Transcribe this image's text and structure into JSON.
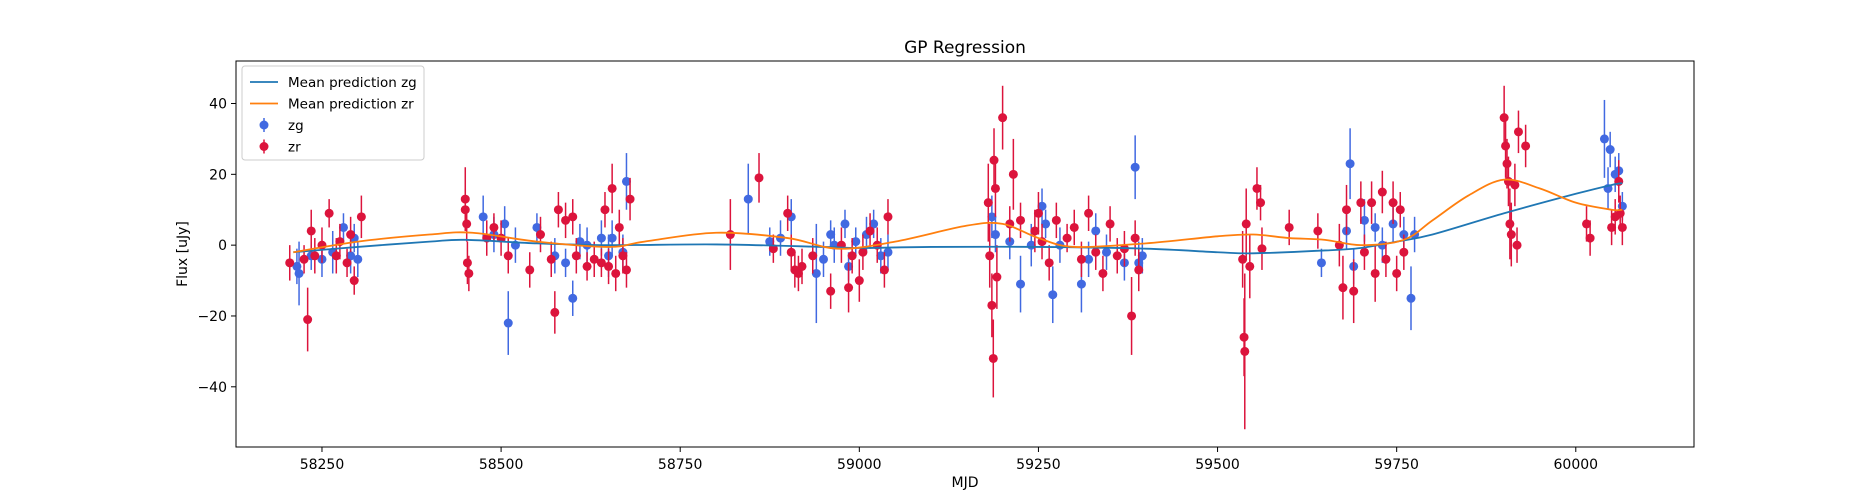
{
  "chart_data": {
    "type": "scatter",
    "title": "GP Regression",
    "xlabel": "MJD",
    "ylabel": "Flux [uJy]",
    "xlim": [
      58130,
      60165
    ],
    "ylim": [
      -57,
      52
    ],
    "xticks": [
      58250,
      58500,
      58750,
      59000,
      59250,
      59500,
      59750,
      60000
    ],
    "yticks": [
      -40,
      -20,
      0,
      20,
      40
    ],
    "grid": false,
    "legend_position": "top-left",
    "lines": [
      {
        "name": "Mean prediction zg",
        "color": "#1f77b4",
        "x": [
          58210,
          58300,
          58400,
          58450,
          58550,
          58650,
          58800,
          58950,
          59000,
          59100,
          59250,
          59400,
          59500,
          59550,
          59650,
          59700,
          59750,
          59800,
          59900,
          60000,
          60050,
          60065
        ],
        "y": [
          -2,
          -0.5,
          1,
          1.5,
          0.5,
          0,
          0.2,
          -0.5,
          -0.8,
          -0.5,
          -0.5,
          -1,
          -2,
          -2.3,
          -1.5,
          -0.8,
          1,
          3,
          9,
          14.5,
          17,
          17.5
        ]
      },
      {
        "name": "Mean prediction zr",
        "color": "#ff7f0e",
        "x": [
          58210,
          58300,
          58400,
          58460,
          58550,
          58650,
          58700,
          58800,
          58900,
          58970,
          59050,
          59150,
          59200,
          59250,
          59300,
          59400,
          59500,
          59550,
          59600,
          59650,
          59700,
          59760,
          59800,
          59850,
          59900,
          59950,
          60000,
          60050,
          60065
        ],
        "y": [
          -2,
          1,
          3,
          3.5,
          1,
          -0.5,
          1,
          3.5,
          2,
          -1,
          1,
          5.5,
          6,
          2,
          -0.5,
          0.5,
          2.5,
          3,
          2,
          1.5,
          0,
          1.5,
          7,
          14,
          18.5,
          16,
          12,
          10,
          10
        ]
      }
    ],
    "series": [
      {
        "name": "zg",
        "color": "#4169e1",
        "points": [
          [
            58215,
            -6,
            5
          ],
          [
            58218,
            -8,
            9
          ],
          [
            58235,
            -3,
            4
          ],
          [
            58250,
            -4,
            5
          ],
          [
            58265,
            -2,
            6
          ],
          [
            58280,
            5,
            4
          ],
          [
            58290,
            -3,
            5
          ],
          [
            58295,
            2,
            4
          ],
          [
            58300,
            -4,
            5
          ],
          [
            58475,
            8,
            6
          ],
          [
            58490,
            3,
            5
          ],
          [
            58505,
            6,
            5
          ],
          [
            58510,
            -22,
            9
          ],
          [
            58520,
            0,
            5
          ],
          [
            58550,
            5,
            4
          ],
          [
            58575,
            -3,
            5
          ],
          [
            58590,
            -5,
            4
          ],
          [
            58600,
            -15,
            5
          ],
          [
            58610,
            1,
            5
          ],
          [
            58620,
            0,
            5
          ],
          [
            58640,
            2,
            5
          ],
          [
            58650,
            -3,
            6
          ],
          [
            58655,
            2,
            5
          ],
          [
            58670,
            -2,
            5
          ],
          [
            58675,
            18,
            8
          ],
          [
            58845,
            13,
            10
          ],
          [
            58875,
            1,
            4
          ],
          [
            58890,
            2,
            5
          ],
          [
            58905,
            8,
            5
          ],
          [
            58940,
            -8,
            14
          ],
          [
            58950,
            -4,
            5
          ],
          [
            58960,
            3,
            4
          ],
          [
            58965,
            0,
            5
          ],
          [
            58980,
            6,
            4
          ],
          [
            58985,
            -6,
            4
          ],
          [
            58995,
            1,
            4
          ],
          [
            59010,
            3,
            5
          ],
          [
            59020,
            6,
            4
          ],
          [
            59030,
            -3,
            5
          ],
          [
            59040,
            -2,
            5
          ],
          [
            59185,
            8,
            6
          ],
          [
            59190,
            3,
            5
          ],
          [
            59210,
            1,
            5
          ],
          [
            59225,
            -11,
            8
          ],
          [
            59240,
            0,
            6
          ],
          [
            59255,
            11,
            5
          ],
          [
            59260,
            6,
            4
          ],
          [
            59270,
            -14,
            8
          ],
          [
            59280,
            0,
            5
          ],
          [
            59310,
            -11,
            8
          ],
          [
            59320,
            -4,
            5
          ],
          [
            59330,
            4,
            5
          ],
          [
            59345,
            -2,
            5
          ],
          [
            59370,
            -5,
            5
          ],
          [
            59385,
            22,
            9
          ],
          [
            59390,
            -5,
            6
          ],
          [
            59395,
            -3,
            5
          ],
          [
            59645,
            -5,
            4
          ],
          [
            59680,
            4,
            5
          ],
          [
            59685,
            23,
            10
          ],
          [
            59690,
            -6,
            5
          ],
          [
            59705,
            7,
            6
          ],
          [
            59720,
            5,
            4
          ],
          [
            59730,
            0,
            5
          ],
          [
            59745,
            6,
            5
          ],
          [
            59760,
            3,
            5
          ],
          [
            59770,
            -15,
            9
          ],
          [
            59775,
            3,
            5
          ],
          [
            60040,
            30,
            11
          ],
          [
            60045,
            16,
            6
          ],
          [
            60048,
            27,
            5
          ],
          [
            60055,
            20,
            5
          ],
          [
            60060,
            21,
            5
          ],
          [
            60065,
            11,
            4
          ]
        ]
      },
      {
        "name": "zr",
        "color": "#dc143c",
        "points": [
          [
            58205,
            -5,
            5
          ],
          [
            58225,
            -4,
            4
          ],
          [
            58230,
            -21,
            9
          ],
          [
            58235,
            4,
            6
          ],
          [
            58240,
            -3,
            5
          ],
          [
            58250,
            0,
            5
          ],
          [
            58260,
            9,
            4
          ],
          [
            58270,
            -3,
            5
          ],
          [
            58275,
            1,
            5
          ],
          [
            58285,
            -5,
            4
          ],
          [
            58290,
            3,
            5
          ],
          [
            58295,
            -10,
            4
          ],
          [
            58305,
            8,
            6
          ],
          [
            58450,
            13,
            9
          ],
          [
            58450,
            10,
            6
          ],
          [
            58452,
            6,
            5
          ],
          [
            58453,
            -5,
            6
          ],
          [
            58455,
            -8,
            5
          ],
          [
            58480,
            2,
            5
          ],
          [
            58490,
            5,
            4
          ],
          [
            58500,
            2,
            5
          ],
          [
            58510,
            -3,
            5
          ],
          [
            58540,
            -7,
            5
          ],
          [
            58555,
            3,
            5
          ],
          [
            58570,
            -4,
            5
          ],
          [
            58575,
            -19,
            6
          ],
          [
            58580,
            10,
            5
          ],
          [
            58590,
            7,
            5
          ],
          [
            58600,
            8,
            5
          ],
          [
            58605,
            -3,
            5
          ],
          [
            58620,
            -6,
            4
          ],
          [
            58630,
            -4,
            5
          ],
          [
            58640,
            -5,
            4
          ],
          [
            58645,
            10,
            5
          ],
          [
            58650,
            -6,
            5
          ],
          [
            58655,
            16,
            7
          ],
          [
            58660,
            -8,
            5
          ],
          [
            58665,
            5,
            5
          ],
          [
            58670,
            -3,
            5
          ],
          [
            58675,
            -7,
            5
          ],
          [
            58680,
            13,
            6
          ],
          [
            58820,
            3,
            10
          ],
          [
            58860,
            19,
            7
          ],
          [
            58880,
            -1,
            4
          ],
          [
            58900,
            9,
            5
          ],
          [
            58905,
            -2,
            5
          ],
          [
            58910,
            -7,
            5
          ],
          [
            58915,
            -8,
            5
          ],
          [
            58920,
            -6,
            5
          ],
          [
            58935,
            -3,
            5
          ],
          [
            58960,
            -13,
            5
          ],
          [
            58975,
            0,
            5
          ],
          [
            58985,
            -12,
            7
          ],
          [
            58990,
            -3,
            5
          ],
          [
            59000,
            -10,
            6
          ],
          [
            59005,
            -2,
            5
          ],
          [
            59015,
            4,
            5
          ],
          [
            59025,
            0,
            5
          ],
          [
            59035,
            -7,
            5
          ],
          [
            59040,
            8,
            5
          ],
          [
            59180,
            12,
            11
          ],
          [
            59182,
            -3,
            9
          ],
          [
            59185,
            -17,
            9
          ],
          [
            59187,
            -32,
            11
          ],
          [
            59188,
            24,
            9
          ],
          [
            59190,
            16,
            8
          ],
          [
            59192,
            -9,
            9
          ],
          [
            59200,
            36,
            9
          ],
          [
            59210,
            6,
            5
          ],
          [
            59215,
            20,
            10
          ],
          [
            59225,
            7,
            5
          ],
          [
            59245,
            4,
            6
          ],
          [
            59250,
            9,
            6
          ],
          [
            59255,
            1,
            5
          ],
          [
            59265,
            -5,
            5
          ],
          [
            59275,
            7,
            5
          ],
          [
            59290,
            2,
            4
          ],
          [
            59300,
            5,
            5
          ],
          [
            59310,
            -4,
            5
          ],
          [
            59320,
            9,
            5
          ],
          [
            59330,
            -2,
            5
          ],
          [
            59340,
            -8,
            5
          ],
          [
            59350,
            6,
            5
          ],
          [
            59360,
            -3,
            5
          ],
          [
            59370,
            -1,
            5
          ],
          [
            59380,
            -20,
            11
          ],
          [
            59385,
            2,
            5
          ],
          [
            59390,
            -7,
            6
          ],
          [
            59535,
            -4,
            8
          ],
          [
            59537,
            -26,
            11
          ],
          [
            59538,
            -30,
            22
          ],
          [
            59540,
            6,
            10
          ],
          [
            59545,
            -6,
            9
          ],
          [
            59555,
            16,
            6
          ],
          [
            59560,
            12,
            5
          ],
          [
            59562,
            -1,
            6
          ],
          [
            59600,
            5,
            5
          ],
          [
            59640,
            4,
            5
          ],
          [
            59670,
            0,
            6
          ],
          [
            59675,
            -12,
            9
          ],
          [
            59680,
            10,
            7
          ],
          [
            59690,
            -13,
            9
          ],
          [
            59700,
            12,
            6
          ],
          [
            59705,
            -2,
            5
          ],
          [
            59715,
            12,
            6
          ],
          [
            59720,
            -8,
            8
          ],
          [
            59730,
            15,
            6
          ],
          [
            59735,
            -4,
            5
          ],
          [
            59745,
            12,
            6
          ],
          [
            59750,
            -8,
            5
          ],
          [
            59755,
            10,
            5
          ],
          [
            59760,
            -2,
            5
          ],
          [
            59900,
            36,
            9
          ],
          [
            59902,
            28,
            9
          ],
          [
            59904,
            23,
            7
          ],
          [
            59906,
            18,
            7
          ],
          [
            59908,
            6,
            10
          ],
          [
            59910,
            3,
            9
          ],
          [
            59915,
            17,
            6
          ],
          [
            59918,
            0,
            5
          ],
          [
            59920,
            32,
            6
          ],
          [
            59930,
            28,
            6
          ],
          [
            60015,
            6,
            5
          ],
          [
            60020,
            2,
            5
          ],
          [
            60050,
            5,
            5
          ],
          [
            60055,
            8,
            5
          ],
          [
            60060,
            18,
            6
          ],
          [
            60062,
            9,
            5
          ],
          [
            60065,
            5,
            5
          ]
        ]
      }
    ]
  }
}
